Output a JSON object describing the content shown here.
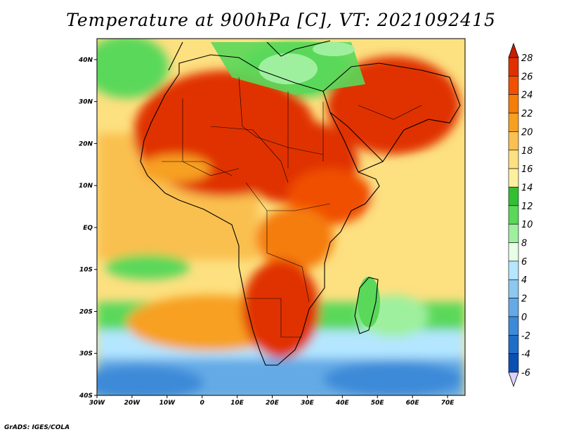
{
  "title": "Temperature at 900hPa [C], VT: 2021092415",
  "credit": "GrADS: IGES/COLA",
  "map": {
    "lat_ticks": [
      "40N",
      "30N",
      "20N",
      "10N",
      "EQ",
      "10S",
      "20S",
      "30S",
      "40S"
    ],
    "lon_ticks": [
      "30W",
      "20W",
      "10W",
      "0",
      "10E",
      "20E",
      "30E",
      "40E",
      "50E",
      "60E",
      "70E"
    ],
    "lon_range": [
      -30,
      75
    ],
    "lat_range": [
      -40,
      45
    ]
  },
  "colorbar": {
    "labels": [
      "28",
      "26",
      "24",
      "22",
      "20",
      "18",
      "16",
      "14",
      "12",
      "10",
      "8",
      "6",
      "4",
      "2",
      "0",
      "-2",
      "-4",
      "-6"
    ],
    "colors": [
      "#e03000",
      "#f05000",
      "#f57d0a",
      "#f7a020",
      "#fac050",
      "#fde080",
      "#fff0a0",
      "#32c032",
      "#5ad85a",
      "#9ef09e",
      "#e6ffe6",
      "#b4e6ff",
      "#8cc8f0",
      "#64aae6",
      "#3c8ad8",
      "#1e6ec8",
      "#0a50b4",
      "#000a82"
    ],
    "top_color": "#c81e00",
    "bottom_color": "#dcd2ff"
  }
}
